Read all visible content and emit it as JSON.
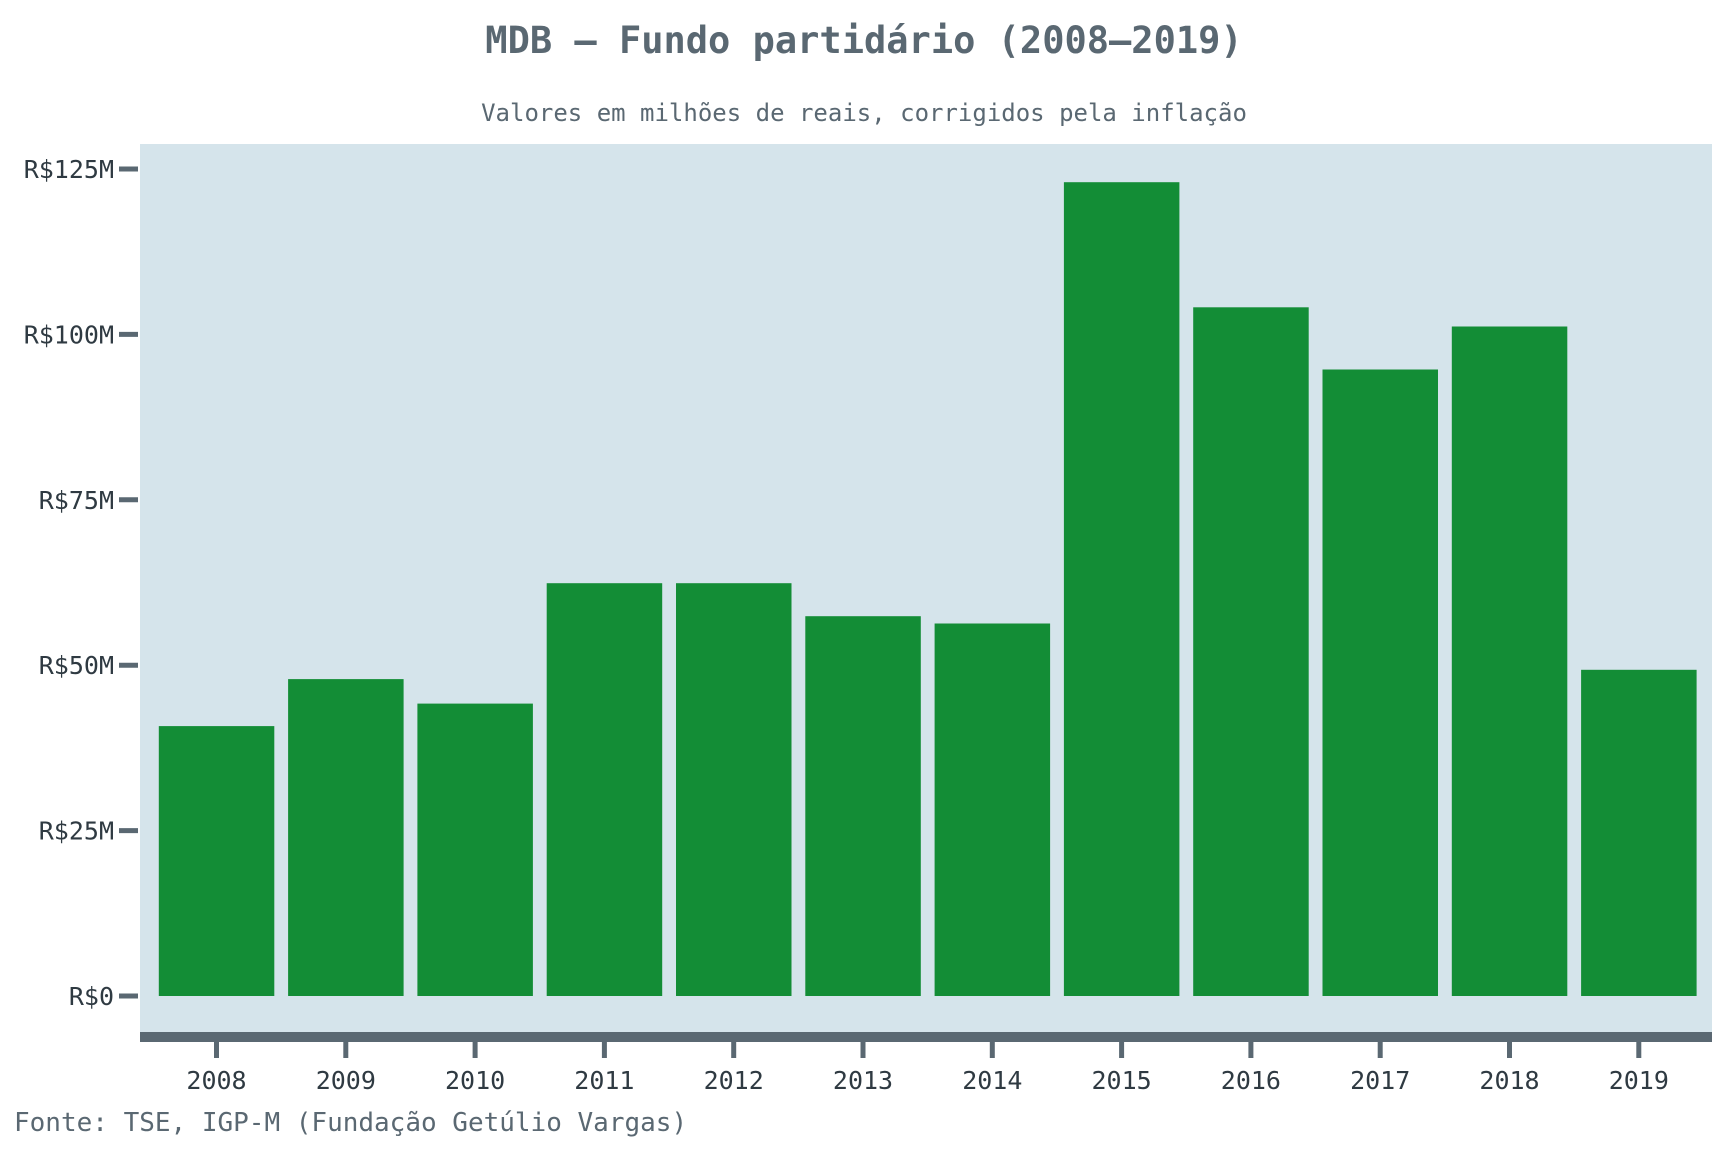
{
  "chart_data": {
    "type": "bar",
    "title": "MDB – Fundo partidário (2008–2019)",
    "subtitle": "Valores em milhões de reais, corrigidos pela inflação",
    "source": "Fonte: TSE, IGP-M (Fundação Getúlio Vargas)",
    "xlabel": "",
    "ylabel": "",
    "categories": [
      "2008",
      "2009",
      "2010",
      "2011",
      "2012",
      "2013",
      "2014",
      "2015",
      "2016",
      "2017",
      "2018",
      "2019"
    ],
    "values": [
      40.8,
      47.9,
      44.2,
      62.4,
      62.4,
      57.4,
      56.3,
      123.0,
      104.1,
      94.7,
      101.2,
      49.3
    ],
    "ylim": [
      0,
      130
    ],
    "yticks": [
      0,
      25,
      50,
      75,
      100,
      125
    ],
    "ytick_labels": [
      "R$0",
      "R$25M",
      "R$50M",
      "R$75M",
      "R$100M",
      "R$125M"
    ],
    "grid": false,
    "legend": "none",
    "colors": {
      "bar": "#138d36",
      "plot_background": "#d5e4eb",
      "axis": "#5a6872",
      "text": "#5a6872"
    }
  }
}
